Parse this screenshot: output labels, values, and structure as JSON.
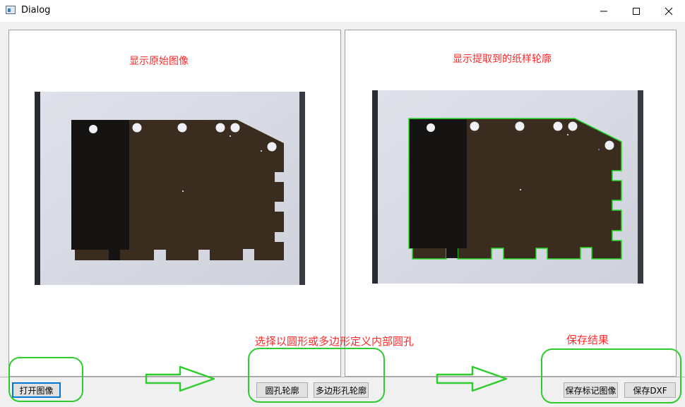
{
  "window": {
    "title": "Dialog"
  },
  "controls": {
    "minimize": "minimize-icon",
    "maximize": "maximize-icon",
    "close": "close-icon"
  },
  "left_panel": {
    "caption": "显示原始图像"
  },
  "right_panel": {
    "caption": "显示提取到的纸样轮廓"
  },
  "annotations": {
    "middle_note": "选择以圆形或多边形定义内部圆孔",
    "right_note": "保存结果"
  },
  "buttons": {
    "open_image": "打开图像",
    "circle_hole_contour": "圆孔轮廓",
    "polygon_hole_contour": "多边形孔轮廓",
    "save_marked_image": "保存标记图像",
    "save_dxf": "保存DXF"
  },
  "colors": {
    "annotation_green": "#2ecc2e",
    "caption_red": "#ff2a2a",
    "contour_green": "#22dd22"
  }
}
